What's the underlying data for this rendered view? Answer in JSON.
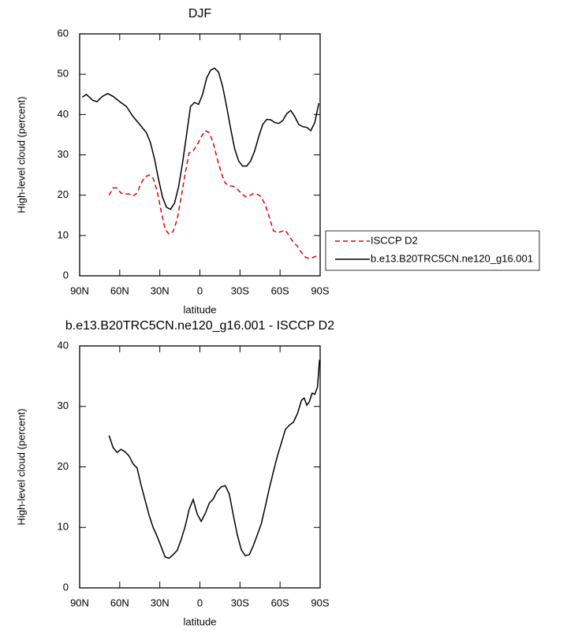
{
  "chart_data": [
    {
      "type": "line",
      "title": "DJF",
      "xlabel": "latitude",
      "ylabel": "High-level cloud (percent)",
      "xlim": [
        90,
        -90
      ],
      "xticks": [
        {
          "value": 90,
          "label": "90N"
        },
        {
          "value": 60,
          "label": "60N"
        },
        {
          "value": 30,
          "label": "30N"
        },
        0,
        {
          "value": -30,
          "label": "30S"
        },
        {
          "value": -60,
          "label": "60S"
        },
        {
          "value": -90,
          "label": "90S"
        }
      ],
      "ylim": [
        0,
        60
      ],
      "yticks": [
        0,
        10,
        20,
        30,
        40,
        50,
        60
      ],
      "legend": "outside-right",
      "series": [
        {
          "name": "ISCCP D2",
          "color": "#e00000",
          "dashed": true,
          "x": [
            68,
            65,
            62,
            59,
            56,
            53,
            50,
            47,
            44,
            41,
            38,
            35,
            32,
            29,
            26,
            23,
            20,
            17,
            14,
            11,
            8,
            5,
            2,
            -1,
            -4,
            -7,
            -10,
            -13,
            -16,
            -19,
            -22,
            -25,
            -28,
            -31,
            -34,
            -37,
            -40,
            -43,
            -46,
            -49,
            -52,
            -55,
            -58,
            -61,
            -64,
            -67,
            -70,
            -73,
            -76,
            -79,
            -82,
            -85,
            -88
          ],
          "values": [
            20,
            21.8,
            21.8,
            20.5,
            20.3,
            20.3,
            19.8,
            20.5,
            23,
            24.5,
            25,
            24.2,
            21,
            16,
            11.5,
            10.3,
            11,
            14,
            19.5,
            25.5,
            30.5,
            31,
            32.5,
            34.5,
            36,
            35.5,
            33,
            29,
            25.5,
            23,
            22.3,
            22.2,
            21.5,
            20.5,
            19.6,
            19.8,
            20.4,
            20.2,
            19.6,
            17.5,
            14.5,
            11.2,
            10.7,
            11,
            11.3,
            9.8,
            8.3,
            7.3,
            5.8,
            4.6,
            4.3,
            4.6,
            5
          ]
        },
        {
          "name": "b.e13.B20TRC5CN.ne120_g16.001",
          "color": "#000000",
          "dashed": false,
          "x": [
            88,
            85,
            80,
            77,
            73,
            69,
            65,
            60,
            55,
            50,
            45,
            40,
            37,
            34,
            31,
            28,
            25,
            22,
            19,
            16,
            13,
            10,
            7,
            4,
            1,
            -2,
            -5,
            -8,
            -11,
            -14,
            -17,
            -20,
            -23,
            -26,
            -29,
            -32,
            -35,
            -38,
            -41,
            -44,
            -47,
            -50,
            -53,
            -56,
            -59,
            -62,
            -65,
            -68,
            -71,
            -74,
            -77,
            -80,
            -83,
            -86,
            -89
          ],
          "values": [
            44.3,
            45,
            43.5,
            43.2,
            44.5,
            45.2,
            44.5,
            43.2,
            42,
            39.5,
            37.5,
            35.5,
            33,
            29,
            24,
            19.5,
            17,
            16.5,
            18,
            22,
            28,
            35,
            42,
            43,
            42.5,
            45,
            49,
            51,
            51.5,
            50.5,
            47,
            42,
            36.5,
            31.5,
            28.5,
            27.2,
            27.2,
            28.5,
            31,
            34.5,
            37.5,
            38.8,
            38.7,
            38,
            37.8,
            38.5,
            40.2,
            41,
            39.5,
            37.5,
            37,
            36.8,
            36,
            38,
            42.8
          ]
        }
      ]
    },
    {
      "type": "line",
      "title": "b.e13.B20TRC5CN.ne120_g16.001 - ISCCP D2",
      "xlabel": "latitude",
      "ylabel": "High-level cloud (percent)",
      "xlim": [
        90,
        -90
      ],
      "xticks": [
        {
          "value": 90,
          "label": "90N"
        },
        {
          "value": 60,
          "label": "60N"
        },
        {
          "value": 30,
          "label": "30N"
        },
        0,
        {
          "value": -30,
          "label": "30S"
        },
        {
          "value": -60,
          "label": "60S"
        },
        {
          "value": -90,
          "label": "90S"
        }
      ],
      "ylim": [
        0,
        40
      ],
      "yticks": [
        0,
        10,
        20,
        30,
        40
      ],
      "series": [
        {
          "color": "#000000",
          "dashed": false,
          "x": [
            68,
            65,
            62,
            59,
            56,
            53,
            50,
            47,
            44,
            41,
            38,
            35,
            32,
            29,
            26,
            23,
            20,
            17,
            14,
            11,
            8,
            5,
            2,
            -1,
            -4,
            -7,
            -10,
            -13,
            -16,
            -19,
            -22,
            -25,
            -28,
            -31,
            -34,
            -37,
            -40,
            -43,
            -46,
            -49,
            -52,
            -55,
            -58,
            -61,
            -64,
            -67,
            -70,
            -73,
            -76,
            -78,
            -80,
            -82,
            -84,
            -86,
            -88,
            -89.5
          ],
          "values": [
            25.2,
            23.2,
            22.4,
            22.9,
            22.5,
            21.8,
            20.5,
            19.8,
            17,
            14.5,
            12,
            10,
            8.5,
            6.8,
            5.1,
            4.9,
            5.5,
            6.2,
            8,
            10.2,
            13,
            14.6,
            12.2,
            11,
            12.3,
            14,
            14.7,
            16,
            16.7,
            16.9,
            15.5,
            12,
            8.8,
            6.3,
            5.3,
            5.5,
            7,
            8.8,
            10.6,
            13.5,
            16.5,
            19.2,
            21.8,
            24,
            26.2,
            26.9,
            27.4,
            28.8,
            31,
            31.4,
            30.2,
            30.8,
            32.2,
            32,
            33.2,
            37.7
          ]
        }
      ]
    }
  ]
}
